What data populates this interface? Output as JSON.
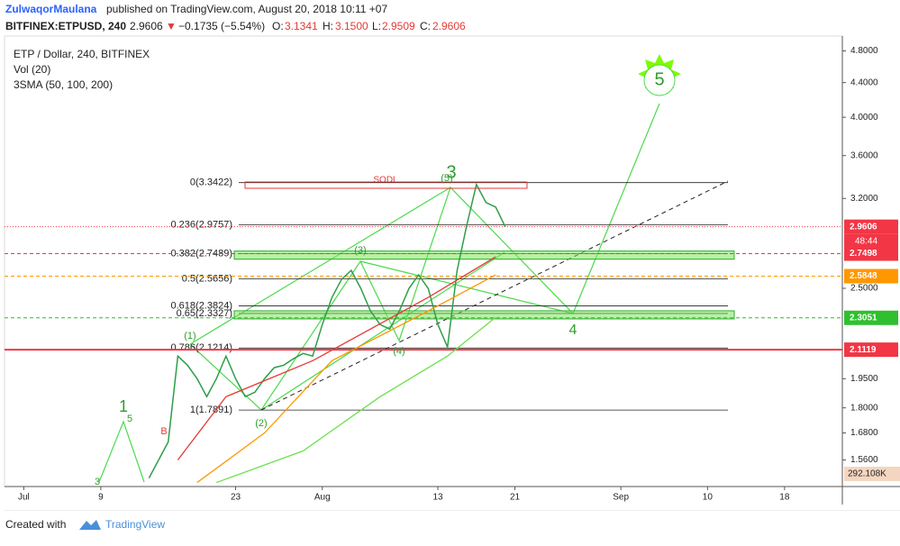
{
  "header": {
    "author": "ZulwaqorMaulana",
    "published": "published on TradingView.com, August 20, 2018 10:11 +07",
    "symbol": "BITFINEX:ETPUSD, 240",
    "last": "2.9606",
    "arrow": "▼",
    "change": "−0.1735 (−5.54%)",
    "o": "O:",
    "o_val": "3.1341",
    "h": "H:",
    "h_val": "3.1500",
    "l": "L:",
    "l_val": "2.9509",
    "c": "C:",
    "c_val": "2.9606"
  },
  "footer": {
    "created": "Created with",
    "brand": "TradingView"
  },
  "chart_data": {
    "type": "line",
    "log_scale": true,
    "grid": false,
    "legend": [
      "ETP / Dollar, 240, BITFINEX",
      "Vol (20)",
      "3SMA (50, 100, 200)"
    ],
    "xlim": [
      "Jun 29",
      "Sep 24"
    ],
    "ylim": [
      1.45,
      5.0
    ],
    "xticks": [
      {
        "value": "Jul 1",
        "label": "Jul"
      },
      {
        "value": "Jul 9",
        "label": "9"
      },
      {
        "value": "Jul 23",
        "label": "23"
      },
      {
        "value": "Aug 1",
        "label": "Aug"
      },
      {
        "value": "Aug 13",
        "label": "13"
      },
      {
        "value": "Aug 21",
        "label": "21"
      },
      {
        "value": "Sep 1",
        "label": "Sep"
      },
      {
        "value": "Sep 10",
        "label": "10"
      },
      {
        "value": "Sep 18",
        "label": "18"
      }
    ],
    "yticks": [
      {
        "value": 4.8,
        "label": "4.8000"
      },
      {
        "value": 4.4,
        "label": "4.4000"
      },
      {
        "value": 4.0,
        "label": "4.0000"
      },
      {
        "value": 3.6,
        "label": "3.6000"
      },
      {
        "value": 3.2,
        "label": "3.2000"
      },
      {
        "value": 2.5,
        "label": "2.5000"
      },
      {
        "value": 1.95,
        "label": "1.9500"
      },
      {
        "value": 1.8,
        "label": "1.8000"
      },
      {
        "value": 1.68,
        "label": "1.6800"
      },
      {
        "value": 1.56,
        "label": "1.5600"
      }
    ],
    "series": [
      {
        "color": "#2e9e4a",
        "width": 1.5,
        "x": [
          "Jul 14",
          "Jul 16",
          "Jul 17",
          "Jul 18",
          "Jul 19",
          "Jul 20",
          "Jul 21",
          "Jul 22",
          "Jul 23",
          "Jul 24",
          "Jul 25",
          "Jul 26",
          "Jul 27",
          "Jul 28",
          "Jul 29",
          "Jul 30",
          "Jul 31",
          "Aug 1",
          "Aug 2",
          "Aug 3",
          "Aug 4",
          "Aug 5",
          "Aug 6",
          "Aug 7",
          "Aug 8",
          "Aug 9",
          "Aug 10",
          "Aug 11",
          "Aug 12",
          "Aug 13",
          "Aug 14",
          "Aug 15",
          "Aug 16",
          "Aug 17",
          "Aug 18",
          "Aug 19",
          "Aug 20"
        ],
        "values": [
          1.484,
          1.639,
          2.075,
          2.024,
          1.95,
          1.856,
          1.95,
          2.075,
          1.95,
          1.856,
          1.879,
          1.95,
          2.01,
          2.024,
          2.06,
          2.09,
          2.075,
          2.263,
          2.438,
          2.562,
          2.626,
          2.499,
          2.349,
          2.263,
          2.235,
          2.349,
          2.499,
          2.594,
          2.499,
          2.263,
          2.127,
          2.626,
          2.973,
          3.325,
          3.164,
          3.125,
          2.9606
        ]
      },
      {
        "color": "#e53935",
        "width": 1.3,
        "x": [
          "Jul 17",
          "Jul 22",
          "Jul 31",
          "Aug 12",
          "Aug 19"
        ],
        "values": [
          1.56,
          1.856,
          2.049,
          2.438,
          2.726
        ]
      },
      {
        "color": "#ff9800",
        "width": 1.3,
        "x": [
          "Jul 19",
          "Jul 26",
          "Aug 2",
          "Aug 12",
          "Aug 19"
        ],
        "values": [
          1.466,
          1.68,
          2.049,
          2.349,
          2.594
        ]
      },
      {
        "color": "#6be04a",
        "width": 1.3,
        "x": [
          "Jul 21",
          "Jul 30",
          "Aug 7",
          "Aug 14",
          "Aug 19"
        ],
        "values": [
          1.466,
          1.599,
          1.856,
          2.075,
          2.309
        ]
      }
    ],
    "fib_levels": [
      {
        "label": "0(3.3422)",
        "value": 3.3422
      },
      {
        "label": "0.236(2.9757)",
        "value": 2.9757
      },
      {
        "label": "0.382(2.7489)",
        "value": 2.7489
      },
      {
        "label": "0.5(2.5656)",
        "value": 2.5656
      },
      {
        "label": "0.618(2.3824)",
        "value": 2.3824
      },
      {
        "label": "0.65(2.3327)",
        "value": 2.3327
      },
      {
        "label": "0.786(2.1214)",
        "value": 2.1214
      },
      {
        "label": "1(1.7891)",
        "value": 1.7891
      }
    ],
    "price_labels": [
      {
        "value": 2.9606,
        "color": "#f23645",
        "style": "dotted"
      },
      {
        "value": 2.7498,
        "color": "#f23645",
        "style": "dashed"
      },
      {
        "value": 2.5848,
        "color": "#ff9800",
        "style": "dashed"
      },
      {
        "value": 2.3051,
        "color": "#2fbf2f",
        "style": "dashed"
      },
      {
        "value": 2.1119,
        "color": "#f23645",
        "style": "solid"
      }
    ],
    "countdown": "48:44",
    "volume_label": "292.108K",
    "annotations": [
      "1",
      "5",
      "3",
      "B",
      "(1)",
      "(2)",
      "(3)",
      "(4)",
      "3",
      "(5)",
      "4",
      "5",
      "SODL"
    ]
  }
}
